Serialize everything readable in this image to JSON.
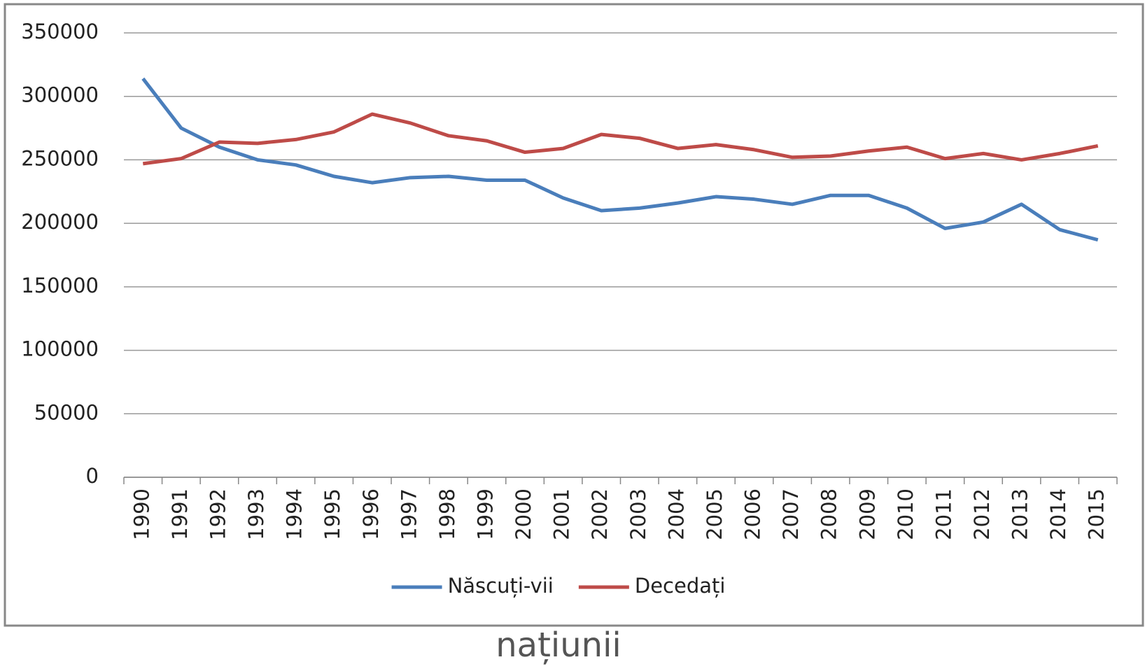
{
  "chart_data": {
    "type": "line",
    "categories": [
      "1990",
      "1991",
      "1992",
      "1993",
      "1994",
      "1995",
      "1996",
      "1997",
      "1998",
      "1999",
      "2000",
      "2001",
      "2002",
      "2003",
      "2004",
      "2005",
      "2006",
      "2007",
      "2008",
      "2009",
      "2010",
      "2011",
      "2012",
      "2013",
      "2014",
      "2015"
    ],
    "series": [
      {
        "name": "Născuți-vii",
        "color": "#4a7ebb",
        "values": [
          314000,
          275000,
          260000,
          250000,
          246000,
          237000,
          232000,
          236000,
          237000,
          234000,
          234000,
          220000,
          210000,
          212000,
          216000,
          221000,
          219000,
          215000,
          222000,
          222000,
          212000,
          196000,
          201000,
          215000,
          195000,
          187000
        ]
      },
      {
        "name": "Decedați",
        "color": "#be4b48",
        "values": [
          247000,
          251000,
          264000,
          263000,
          266000,
          272000,
          286000,
          279000,
          269000,
          265000,
          256000,
          259000,
          270000,
          267000,
          259000,
          262000,
          258000,
          252000,
          253000,
          257000,
          260000,
          251000,
          255000,
          250000,
          255000,
          261000
        ]
      }
    ],
    "ylim": [
      0,
      350000
    ],
    "yticks": [
      0,
      50000,
      100000,
      150000,
      200000,
      250000,
      300000,
      350000
    ],
    "grid": true,
    "legend": "bottom"
  },
  "footer_text": "națiunii"
}
